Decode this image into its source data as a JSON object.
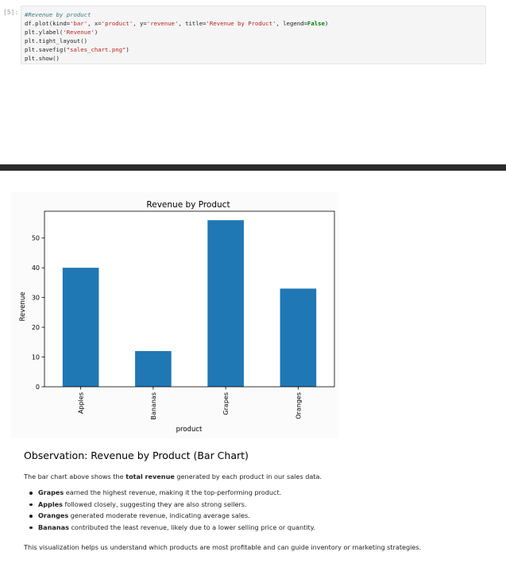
{
  "cell": {
    "prompt": "[5]:",
    "code": {
      "comment": "#Revenue by product",
      "l1_a": "df.plot(kind=",
      "l1_kind": "'bar'",
      "l1_b": ", x=",
      "l1_x": "'product'",
      "l1_c": ", y=",
      "l1_y": "'revenue'",
      "l1_d": ", title=",
      "l1_title": "'Revenue by Product'",
      "l1_e": ", legend=",
      "l1_false": "False",
      "l1_f": ")",
      "l2_a": "plt.ylabel(",
      "l2_str": "'Revenue'",
      "l2_b": ")",
      "l3": "plt.tight_layout()",
      "l4_a": "plt.savefig(",
      "l4_str": "\"sales_chart.png\"",
      "l4_b": ")",
      "l5": "plt.show()"
    }
  },
  "chart_data": {
    "type": "bar",
    "title": "Revenue by Product",
    "xlabel": "product",
    "ylabel": "Revenue",
    "categories": [
      "Apples",
      "Bananas",
      "Grapes",
      "Oranges"
    ],
    "values": [
      40,
      12,
      56,
      33
    ],
    "ylim": [
      0,
      59
    ],
    "yticks": [
      0,
      10,
      20,
      30,
      40,
      50
    ],
    "bar_color": "#1f77b4",
    "grid": false,
    "legend": false
  },
  "observation": {
    "heading": "Observation: Revenue by Product (Bar Chart)",
    "intro_pre": "The bar chart above shows the ",
    "intro_bold": "total revenue",
    "intro_post": " generated by each product in our sales data.",
    "bullets": [
      {
        "bold": "Grapes",
        "text": " earned the highest revenue, making it the top-performing product."
      },
      {
        "bold": "Apples",
        "text": " followed closely, suggesting they are also strong sellers."
      },
      {
        "bold": "Oranges",
        "text": " generated moderate revenue, indicating average sales."
      },
      {
        "bold": "Bananas",
        "text": " contributed the least revenue, likely due to a lower selling price or quantity."
      }
    ],
    "outro": "This visualization helps us understand which products are most profitable and can guide inventory or marketing strategies."
  }
}
